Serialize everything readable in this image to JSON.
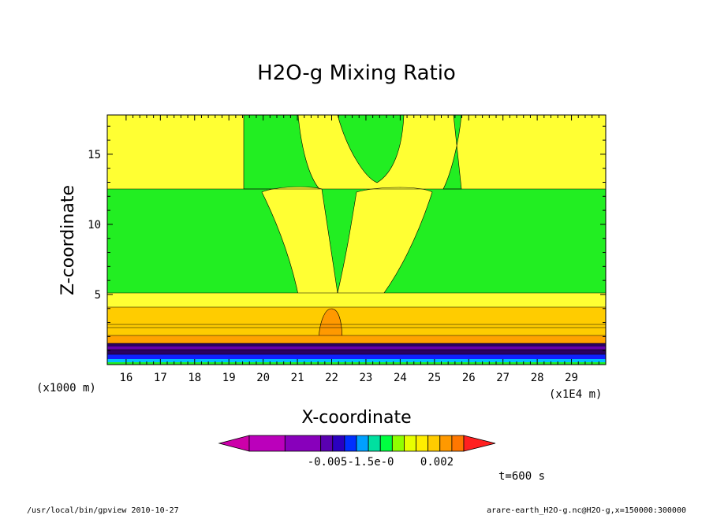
{
  "chart_data": {
    "type": "heatmap",
    "title": "H2O-g Mixing Ratio",
    "xlabel": "X-coordinate",
    "ylabel": "Z-coordinate",
    "x_unit_left": "(x1000 m)",
    "x_unit_right": "(x1E4 m)",
    "xlim": [
      15.45,
      30.0
    ],
    "ylim": [
      0.0,
      17.8
    ],
    "x_ticks": [
      "16",
      "17",
      "18",
      "19",
      "20",
      "21",
      "22",
      "23",
      "24",
      "25",
      "26",
      "27",
      "28",
      "29"
    ],
    "y_ticks": [
      "5",
      "10",
      "15"
    ],
    "colorbar_labels": [
      "-0.005",
      "-1.5e-0",
      "0.002"
    ],
    "colorbar_colors": [
      "#cc00aa",
      "#bb00bb",
      "#8800bb",
      "#5a00b0",
      "#2a00c0",
      "#0030ff",
      "#00a0ff",
      "#00e0a0",
      "#00ff40",
      "#90ff00",
      "#e8ff00",
      "#ffee00",
      "#ffcc00",
      "#ff9900",
      "#ff7700",
      "#ff2020"
    ],
    "time_label": "t=600 s",
    "field_colors": {
      "yellow": "#ffff33",
      "green": "#22ee22",
      "gold": "#ffcc00",
      "orange": "#ffa200",
      "dark_orange": "#ff9900"
    }
  },
  "footer": {
    "left": "/usr/local/bin/gpview  2010-10-27",
    "right": "arare-earth_H2O-g.nc@H2O-g,x=150000:300000"
  }
}
